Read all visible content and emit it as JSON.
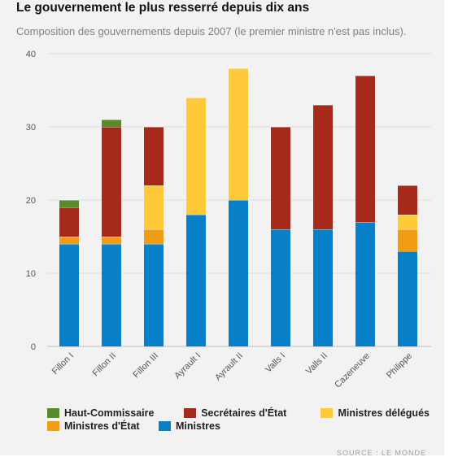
{
  "header": {
    "title": "Le gouvernement le plus resserré depuis dix ans",
    "subtitle": "Composition des gouvernements depuis 2007 (le premier ministre n'est pas inclus)."
  },
  "colors": {
    "haut_commissaire": "#5b8a2b",
    "secretaires": "#a52a1a",
    "delegues": "#ffc93a",
    "ministres_etat": "#f09c14",
    "ministres": "#0880c7"
  },
  "legend": {
    "row1": [
      {
        "label": "Haut-Commissaire",
        "color": "#5b8a2b"
      },
      {
        "label": "Secrétaires d'État",
        "color": "#a52a1a"
      },
      {
        "label": "Ministres délégués",
        "color": "#ffc93a"
      }
    ],
    "row2": [
      {
        "label": "Ministres d'État",
        "color": "#f09c14"
      },
      {
        "label": "Ministres",
        "color": "#0880c7"
      }
    ]
  },
  "source": "SOURCE : LE MONDE",
  "chart_data": {
    "type": "bar",
    "stacked": true,
    "categories": [
      "Fillon I",
      "Fillon II",
      "Fillon III",
      "Ayrault I",
      "Ayrault II",
      "Valls I",
      "Valls II",
      "Cazeneuve",
      "Philippe"
    ],
    "ylim": [
      0,
      40
    ],
    "yticks": [
      0,
      10,
      20,
      30,
      40
    ],
    "grid": true,
    "legend_position": "bottom",
    "series": [
      {
        "name": "Ministres",
        "color": "#0880c7",
        "values": [
          14,
          14,
          14,
          18,
          20,
          16,
          16,
          17,
          13
        ]
      },
      {
        "name": "Ministres d'État",
        "color": "#f09c14",
        "values": [
          1,
          1,
          2,
          0,
          0,
          0,
          0,
          0,
          3
        ]
      },
      {
        "name": "Ministres délégués",
        "color": "#ffc93a",
        "values": [
          0,
          0,
          6,
          16,
          18,
          0,
          0,
          0,
          2
        ]
      },
      {
        "name": "Secrétaires d'État",
        "color": "#a52a1a",
        "values": [
          4,
          15,
          8,
          0,
          0,
          14,
          17,
          20,
          4
        ]
      },
      {
        "name": "Haut-Commissaire",
        "color": "#5b8a2b",
        "values": [
          1,
          1,
          0,
          0,
          0,
          0,
          0,
          0,
          0
        ]
      }
    ]
  }
}
